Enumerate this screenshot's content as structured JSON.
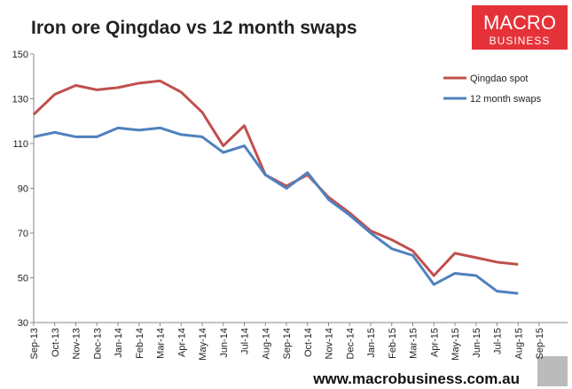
{
  "chart_data": {
    "type": "line",
    "title": "Iron ore Qingdao vs 12 month swaps",
    "brand": [
      "MACRO",
      "BUSINESS"
    ],
    "source": "www.macrobusiness.com.au",
    "categories": [
      "Sep-13",
      "Oct-13",
      "Nov-13",
      "Dec-13",
      "Jan-14",
      "Feb-14",
      "Mar-14",
      "Apr-14",
      "May-14",
      "Jun-14",
      "Jul-14",
      "Aug-14",
      "Sep-14",
      "Oct-14",
      "Nov-14",
      "Dec-14",
      "Jan-15",
      "Feb-15",
      "Mar-15",
      "Apr-15",
      "May-15",
      "Jun-15",
      "Jul-15",
      "Aug-15",
      "Sep-15"
    ],
    "series": [
      {
        "name": "Qingdao spot",
        "color": "#c0504d",
        "values": [
          123,
          132,
          136,
          134,
          135,
          137,
          138,
          133,
          124,
          109,
          118,
          96,
          91,
          96,
          86,
          79,
          71,
          67,
          62,
          51,
          61,
          59,
          57,
          56,
          null
        ]
      },
      {
        "name": "12 month swaps",
        "color": "#4f81bd",
        "values": [
          113,
          115,
          113,
          113,
          117,
          116,
          117,
          114,
          113,
          106,
          109,
          96,
          90,
          97,
          85,
          78,
          70,
          63,
          60,
          47,
          52,
          51,
          44,
          43,
          null
        ]
      }
    ],
    "ylim": [
      30,
      150
    ],
    "yticks": [
      30,
      50,
      70,
      90,
      110,
      130,
      150
    ],
    "legend": "top-right",
    "grid": false
  }
}
